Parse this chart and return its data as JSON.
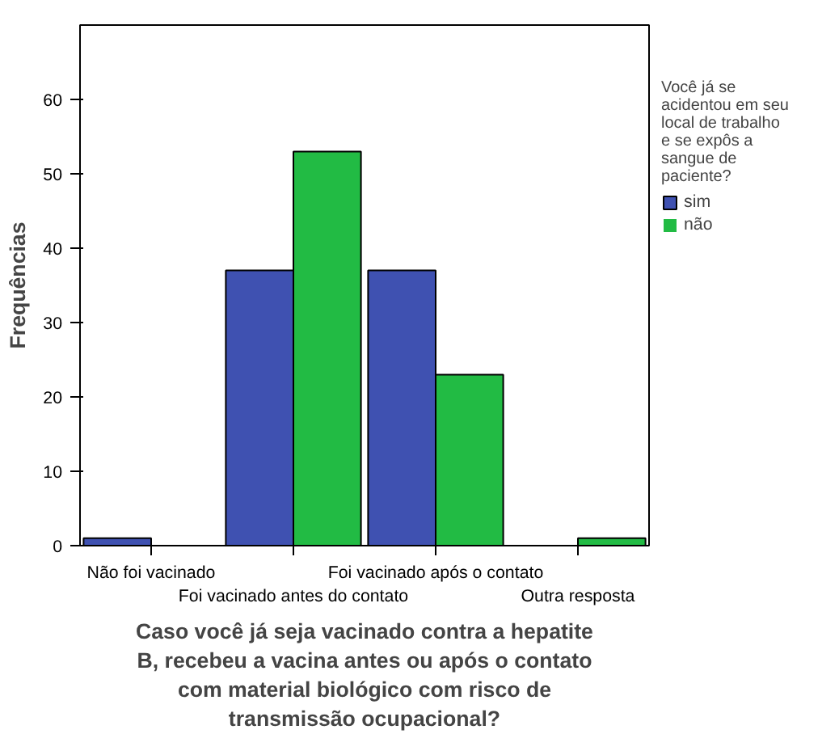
{
  "chart_data": {
    "type": "bar",
    "xlabel": "Caso você já seja vacinado contra a hepatite B, recebeu a vacina antes ou após o contato com material biológico com risco de transmissão ocupacional?",
    "ylabel": "Frequências",
    "legend_title": "Você já se acidentou em seu local de trabalho e se expôs a sangue de paciente?",
    "categories": [
      "Não foi vacinado",
      "Foi vacinado antes do contato",
      "Foi vacinado após o contato",
      "Outra resposta"
    ],
    "series": [
      {
        "name": "sim",
        "color": "#3f51b1",
        "values": [
          1,
          37,
          37,
          0
        ]
      },
      {
        "name": "não",
        "color": "#22bb44",
        "values": [
          0,
          53,
          23,
          1
        ]
      }
    ],
    "ylim": [
      0,
      70
    ],
    "yticks": [
      0,
      10,
      20,
      30,
      40,
      50,
      60
    ],
    "grid": false,
    "legend": "right"
  }
}
